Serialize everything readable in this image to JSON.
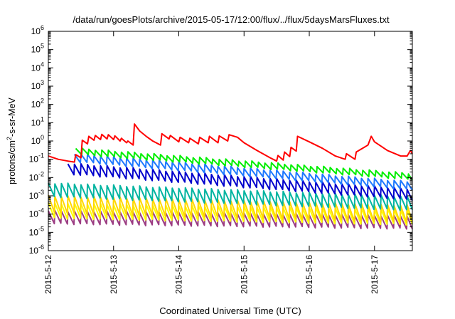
{
  "chart_data": {
    "type": "line",
    "title": "/data/run/goesPlots/archive/2015-05-17/12:00/flux/../flux/5daysMarsFluxes.txt",
    "xlabel": "Coordinated Universal Time (UTC)",
    "ylabel_parts": [
      "protons/cm",
      "2",
      "-s-sr-MeV"
    ],
    "x_unit": "days since 2015-5-12 00:00 UTC",
    "xlim": [
      0,
      5.58
    ],
    "ylim": [
      1e-06,
      1000000.0
    ],
    "yscale": "log",
    "xticks": [
      {
        "x": 0,
        "label": "2015-5-12"
      },
      {
        "x": 1,
        "label": "2015-5-13"
      },
      {
        "x": 2,
        "label": "2015-5-14"
      },
      {
        "x": 3,
        "label": "2015-5-15"
      },
      {
        "x": 4,
        "label": "2015-5-16"
      },
      {
        "x": 5,
        "label": "2015-5-17"
      }
    ],
    "yticks": [
      {
        "value": 1e-06,
        "mantissa": "10",
        "exp": "-6"
      },
      {
        "value": 1e-05,
        "mantissa": "10",
        "exp": "-5"
      },
      {
        "value": 0.0001,
        "mantissa": "10",
        "exp": "-4"
      },
      {
        "value": 0.001,
        "mantissa": "10",
        "exp": "-3"
      },
      {
        "value": 0.01,
        "mantissa": "10",
        "exp": "-2"
      },
      {
        "value": 0.1,
        "mantissa": "10",
        "exp": "-1"
      },
      {
        "value": 1.0,
        "mantissa": "10",
        "exp": "0"
      },
      {
        "value": 10.0,
        "mantissa": "10",
        "exp": "1"
      },
      {
        "value": 100.0,
        "mantissa": "10",
        "exp": "2"
      },
      {
        "value": 1000.0,
        "mantissa": "10",
        "exp": "3"
      },
      {
        "value": 10000.0,
        "mantissa": "10",
        "exp": "4"
      },
      {
        "value": 100000.0,
        "mantissa": "10",
        "exp": "5"
      },
      {
        "value": 1000000.0,
        "mantissa": "10",
        "exp": "6"
      }
    ],
    "grid": false,
    "legend": "none",
    "series": [
      {
        "color": "#ff0000",
        "x": [
          0,
          0.15,
          0.3,
          0.4,
          0.42,
          0.5,
          0.52,
          0.6,
          0.62,
          0.7,
          0.72,
          0.8,
          0.82,
          0.9,
          0.92,
          1.0,
          1.02,
          1.1,
          1.12,
          1.2,
          1.22,
          1.3,
          1.32,
          1.4,
          1.5,
          1.6,
          1.72,
          1.74,
          1.85,
          1.87,
          2.0,
          2.02,
          2.15,
          2.17,
          2.3,
          2.32,
          2.45,
          2.47,
          2.6,
          2.62,
          2.75,
          2.77,
          2.9,
          3.0,
          3.2,
          3.4,
          3.5,
          3.52,
          3.6,
          3.62,
          3.7,
          3.72,
          3.8,
          3.82,
          4.0,
          4.2,
          4.4,
          4.55,
          4.57,
          4.7,
          4.72,
          4.9,
          4.95,
          5.0,
          5.2,
          5.4,
          5.5,
          5.55,
          5.58
        ],
        "y": [
          0.15,
          0.1,
          0.08,
          0.07,
          0.18,
          0.12,
          1.1,
          0.7,
          1.8,
          1.1,
          2.0,
          1.2,
          2.3,
          1.3,
          2.2,
          1.2,
          1.9,
          1.0,
          1.4,
          0.8,
          1.0,
          0.6,
          8.5,
          3.5,
          1.8,
          1.0,
          0.6,
          2.5,
          1.3,
          2.0,
          0.9,
          1.6,
          0.8,
          1.4,
          0.7,
          1.6,
          0.8,
          1.8,
          0.8,
          1.9,
          1.0,
          2.2,
          1.6,
          0.8,
          0.3,
          0.12,
          0.08,
          0.16,
          0.09,
          0.25,
          0.14,
          0.45,
          0.28,
          1.8,
          0.9,
          0.4,
          0.15,
          0.1,
          0.2,
          0.1,
          0.25,
          0.6,
          1.8,
          0.9,
          0.3,
          0.15,
          0.15,
          0.3,
          0.2
        ]
      }
    ],
    "sawtooth_series": [
      {
        "color": "#00ee00",
        "x_start": 0.42,
        "peak_start": 0.4,
        "peak_end": 0.017,
        "ratio": 0.45,
        "period": 0.1
      },
      {
        "color": "#1e78ff",
        "x_start": 0.4,
        "peak_start": 0.2,
        "peak_end": 0.006,
        "ratio": 0.35,
        "period": 0.1
      },
      {
        "color": "#0000cc",
        "x_start": 0.3,
        "peak_start": 0.06,
        "peak_end": 0.0024,
        "ratio": 0.25,
        "period": 0.1
      },
      {
        "color": "#00b4a0",
        "x_start": 0.0,
        "peak_start": 0.005,
        "peak_end": 0.0009,
        "ratio": 0.18,
        "period": 0.1
      },
      {
        "color": "#ffd700",
        "x_start": 0.0,
        "peak_start": 0.001,
        "peak_end": 0.0003,
        "ratio": 0.12,
        "period": 0.1
      },
      {
        "color": "#ffff00",
        "x_start": 0.0,
        "peak_start": 0.0004,
        "peak_end": 0.00018,
        "ratio": 0.15,
        "period": 0.1
      },
      {
        "color": "#9b3c82",
        "x_start": 0.0,
        "peak_start": 0.00015,
        "peak_end": 8e-05,
        "ratio": 0.2,
        "period": 0.1
      }
    ]
  }
}
